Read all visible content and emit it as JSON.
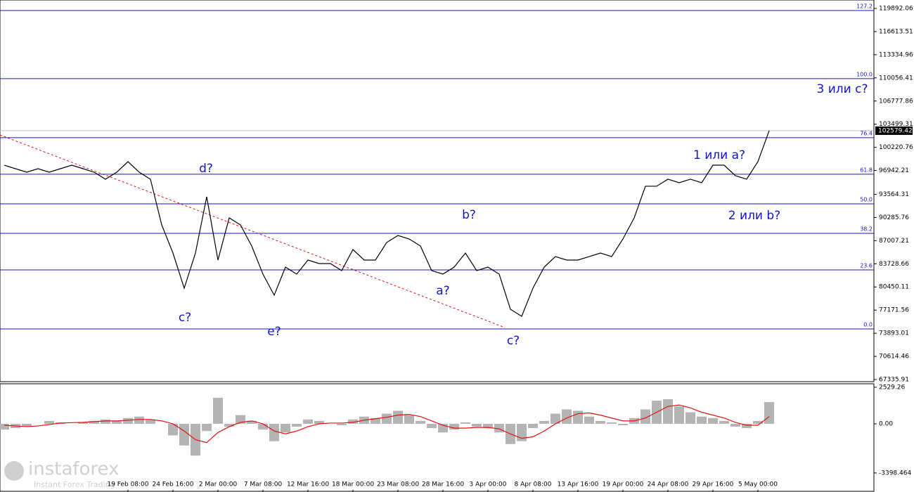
{
  "chart_data": {
    "type": "line",
    "categories": [
      null,
      null,
      null,
      null,
      null,
      null,
      null,
      null,
      null,
      null,
      null,
      "19 Feb 08:00",
      null,
      null,
      null,
      "24 Feb 16:00",
      null,
      null,
      null,
      "2 Mar 00:00",
      null,
      null,
      null,
      "7 Mar 08:00",
      null,
      null,
      null,
      "12 Mar 16:00",
      null,
      null,
      null,
      "18 Mar 00:00",
      null,
      null,
      null,
      "23 Mar 08:00",
      null,
      null,
      null,
      "28 Mar 16:00",
      null,
      null,
      null,
      "3 Apr 00:00",
      null,
      null,
      null,
      "8 Apr 08:00",
      null,
      null,
      null,
      "13 Apr 16:00",
      null,
      null,
      null,
      "19 Apr 00:00",
      null,
      null,
      null,
      "24 Apr 08:00",
      null,
      null,
      null,
      "29 Apr 16:00",
      null,
      null,
      null,
      "5 May 00:00",
      null
    ],
    "values": [
      97694,
      97197,
      96699,
      97197,
      96699,
      97197,
      97694,
      97197,
      96699,
      95703,
      96699,
      98192,
      96699,
      95703,
      89234,
      85252,
      80275,
      85252,
      93215,
      84257,
      90230,
      89234,
      86248,
      82266,
      79279,
      83261,
      82266,
      84257,
      83759,
      83759,
      82763,
      85750,
      84257,
      84257,
      86745,
      87741,
      87243,
      86248,
      82763,
      82266,
      83261,
      85252,
      82763,
      83261,
      82266,
      77288,
      76293,
      80275,
      83261,
      84754,
      84257,
      84257,
      84754,
      85252,
      84754,
      87243,
      90230,
      94713,
      94713,
      95708,
      95211,
      95708,
      95211,
      97694,
      97694,
      96206,
      95708,
      98192,
      102579
    ],
    "color": "#000000",
    "ylim": [
      67335.91,
      119892.06
    ],
    "yticks": [
      119892.06,
      116613.51,
      113334.96,
      110056.41,
      106777.86,
      103499.31,
      100220.76,
      96942.21,
      93564.31,
      90285.76,
      87007.21,
      83728.66,
      80450.11,
      77171.56,
      73893.01,
      70614.46,
      67335.91
    ],
    "current_price": 102579.42,
    "levels": [
      {
        "value": 119592,
        "label": "127.2"
      },
      {
        "value": 109950,
        "label": "100.0"
      },
      {
        "value": 101584,
        "label": "76.4"
      },
      {
        "value": 96408,
        "label": "61.8"
      },
      {
        "value": 92225,
        "label": "50.0"
      },
      {
        "value": 88042,
        "label": "38.2"
      },
      {
        "value": 82866,
        "label": "23.6"
      },
      {
        "value": 74500,
        "label": "0.0"
      }
    ],
    "level_color": "#1414c8",
    "annotations": [
      "d?",
      "c?",
      "e?",
      "b?",
      "a?",
      "c?",
      "1 или a?",
      "2 или b?",
      "3 или c?"
    ],
    "oscillator": {
      "histogram": [
        -400,
        -300,
        -200,
        0,
        200,
        100,
        0,
        100,
        200,
        300,
        200,
        400,
        500,
        300,
        0,
        -800,
        -1500,
        -2200,
        -500,
        1800,
        -200,
        600,
        200,
        -400,
        -1200,
        -600,
        -200,
        300,
        200,
        0,
        -100,
        300,
        500,
        400,
        700,
        900,
        600,
        200,
        -300,
        -600,
        -400,
        100,
        -200,
        -300,
        -600,
        -1400,
        -1200,
        -300,
        200,
        700,
        1000,
        900,
        500,
        200,
        100,
        -100,
        400,
        1000,
        1600,
        1700,
        1200,
        800,
        500,
        400,
        200,
        -200,
        -300,
        200,
        1500
      ],
      "signal": [
        -100,
        -150,
        -200,
        -150,
        -50,
        50,
        80,
        100,
        150,
        200,
        200,
        250,
        300,
        300,
        200,
        0,
        -500,
        -1100,
        -1300,
        -600,
        -200,
        100,
        200,
        0,
        -500,
        -700,
        -500,
        -200,
        0,
        50,
        50,
        100,
        250,
        350,
        450,
        600,
        650,
        500,
        200,
        -100,
        -300,
        -300,
        -250,
        -250,
        -350,
        -700,
        -1000,
        -900,
        -500,
        0,
        400,
        700,
        750,
        600,
        400,
        200,
        200,
        400,
        800,
        1200,
        1300,
        1100,
        800,
        600,
        400,
        100,
        -100,
        -100,
        500
      ],
      "histogram_color": "#b4b4b4",
      "signal_color": "#e01010",
      "ylim": [
        -4570,
        2720
      ],
      "yticks": [
        2529.26,
        {
          "value": 0,
          "label": "0.00"
        },
        -3398.464
      ]
    },
    "watermark": {
      "brand": "instaforex",
      "tagline": "Instant Forex Trading"
    }
  }
}
